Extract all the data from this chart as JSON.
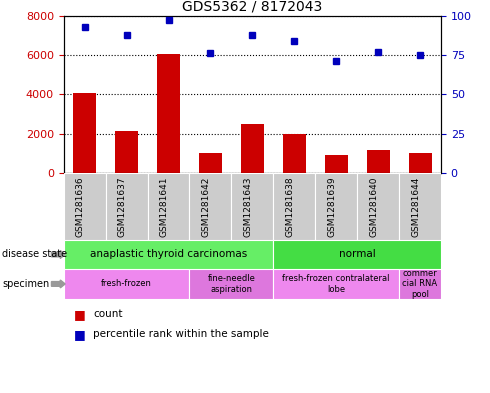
{
  "title": "GDS5362 / 8172043",
  "samples": [
    "GSM1281636",
    "GSM1281637",
    "GSM1281641",
    "GSM1281642",
    "GSM1281643",
    "GSM1281638",
    "GSM1281639",
    "GSM1281640",
    "GSM1281644"
  ],
  "counts": [
    4050,
    2150,
    6050,
    1020,
    2500,
    1980,
    900,
    1150,
    1000
  ],
  "percentile_ranks": [
    93,
    88,
    97,
    76,
    88,
    84,
    71,
    77,
    75
  ],
  "ylim_left": [
    0,
    8000
  ],
  "ylim_right": [
    0,
    100
  ],
  "yticks_left": [
    0,
    2000,
    4000,
    6000,
    8000
  ],
  "yticks_right": [
    0,
    25,
    50,
    75,
    100
  ],
  "disease_state": [
    {
      "label": "anaplastic thyroid carcinomas",
      "start": 0,
      "end": 5,
      "color": "#66ee66"
    },
    {
      "label": "normal",
      "start": 5,
      "end": 9,
      "color": "#44dd44"
    }
  ],
  "specimen": [
    {
      "label": "fresh-frozen",
      "start": 0,
      "end": 3,
      "color": "#ee88ee"
    },
    {
      "label": "fine-needle\naspiration",
      "start": 3,
      "end": 5,
      "color": "#dd77dd"
    },
    {
      "label": "fresh-frozen contralateral\nlobe",
      "start": 5,
      "end": 8,
      "color": "#ee88ee"
    },
    {
      "label": "commer\ncial RNA\npool",
      "start": 8,
      "end": 9,
      "color": "#dd77dd"
    }
  ],
  "bar_color": "#cc0000",
  "dot_color": "#0000bb",
  "grid_color": "#000000",
  "tick_color_left": "#cc0000",
  "tick_color_right": "#0000bb",
  "plot_bg_color": "#ffffff",
  "fig_bg_color": "#ffffff",
  "xtick_bg_color": "#cccccc"
}
